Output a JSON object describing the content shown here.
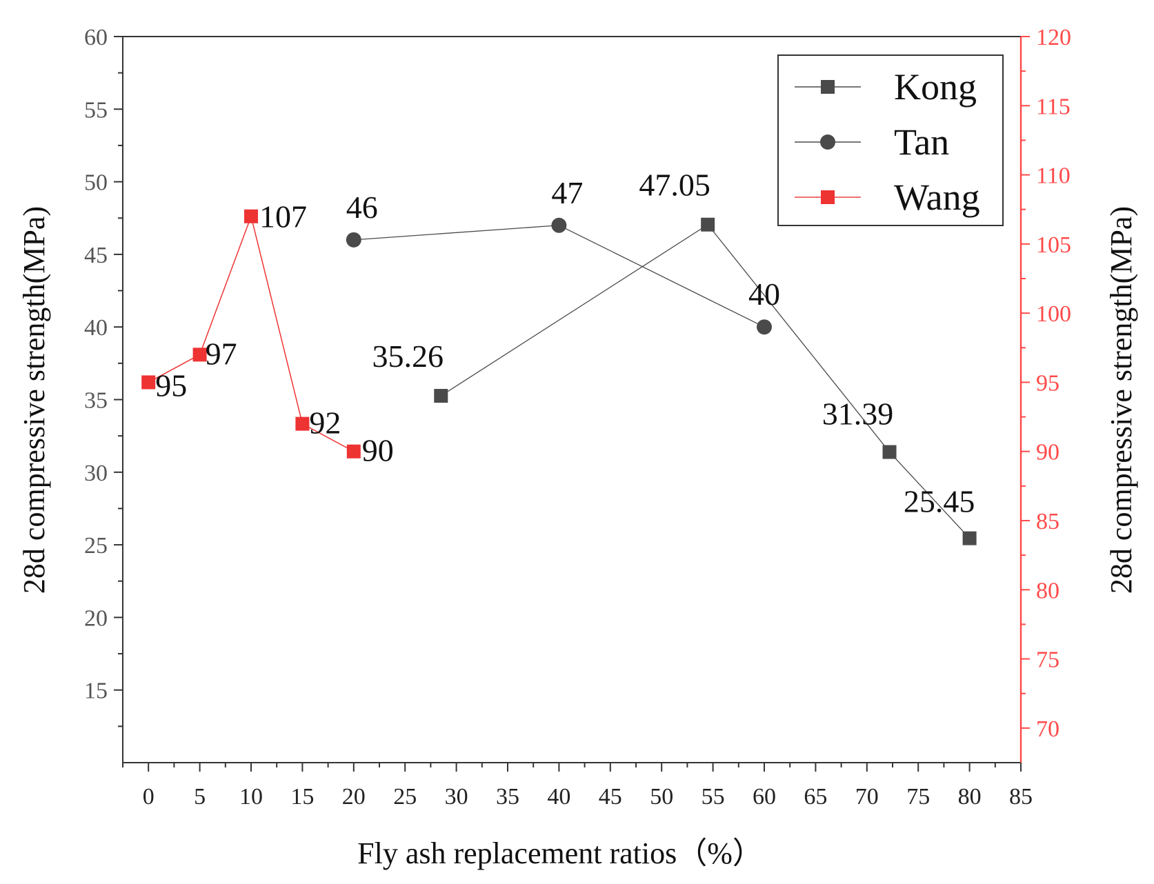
{
  "chart_data": {
    "type": "line",
    "title": "",
    "xlabel": "Fly ash replacement ratios（%）",
    "ylabel": "28d compressive strength(MPa)",
    "ylabel_right": "28d compressive strength(MPa)",
    "xlim": [
      -2.5,
      85
    ],
    "ylim": [
      10,
      60
    ],
    "ylim_right": [
      67.5,
      120
    ],
    "x_ticks": [
      0,
      5,
      10,
      15,
      20,
      25,
      30,
      35,
      40,
      45,
      50,
      55,
      60,
      65,
      70,
      75,
      80,
      85
    ],
    "y_ticks": [
      15,
      20,
      25,
      30,
      35,
      40,
      45,
      50,
      55,
      60
    ],
    "y_ticks_right": [
      70,
      75,
      80,
      85,
      90,
      95,
      100,
      105,
      110,
      115,
      120
    ],
    "legend_position": "top-right",
    "series": [
      {
        "name": "Kong",
        "axis": "left",
        "marker": "square",
        "color": "#4a4a4a",
        "x": [
          28.5,
          54.5,
          72.2,
          80
        ],
        "values": [
          35.26,
          47.05,
          31.39,
          25.45
        ],
        "labels": [
          "35.26",
          "47.05",
          "31.39",
          "25.45"
        ]
      },
      {
        "name": "Tan",
        "axis": "left",
        "marker": "circle",
        "color": "#4a4a4a",
        "x": [
          20,
          40,
          60
        ],
        "values": [
          46,
          47,
          40
        ],
        "labels": [
          "46",
          "47",
          "40"
        ]
      },
      {
        "name": "Wang",
        "axis": "right",
        "marker": "square",
        "color": "#ee3333",
        "x": [
          0,
          5,
          10,
          15,
          20
        ],
        "values": [
          95,
          97,
          107,
          92,
          90
        ],
        "labels": [
          "95",
          "97",
          "107",
          "92",
          "90"
        ]
      }
    ]
  },
  "colors": {
    "left_axis": "#333333",
    "right_axis": "#ff4a4a",
    "kong_line": "#4a4a4a",
    "tan_line": "#4a4a4a",
    "wang_line": "#ee3333"
  }
}
